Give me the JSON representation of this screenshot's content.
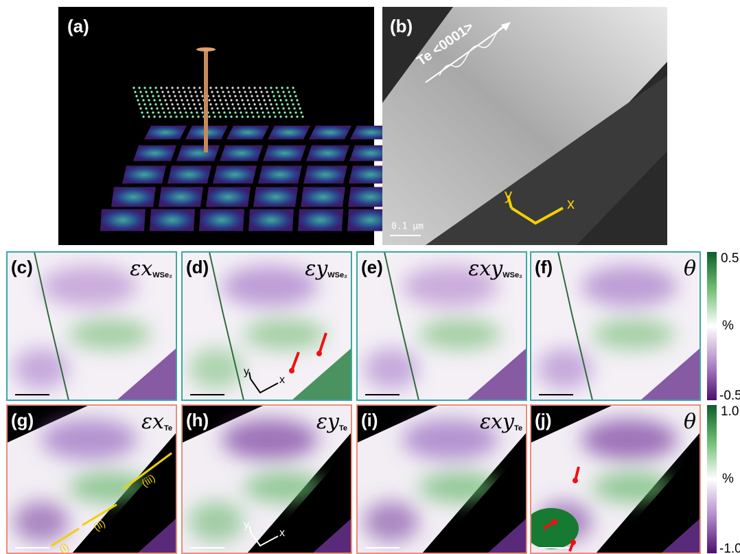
{
  "panel_a": {
    "label": "(a)"
  },
  "panel_b": {
    "label": "(b)",
    "direction": "Te <0001>",
    "axis_y": "y",
    "axis_x": "x",
    "scale_bar": "0.1 μm"
  },
  "row_wse2": {
    "panels": [
      {
        "label": "(c)",
        "symbol": "ε",
        "var": "x",
        "sub": "WSe₂"
      },
      {
        "label": "(d)",
        "symbol": "ε",
        "var": "y",
        "sub": "WSe₂"
      },
      {
        "label": "(e)",
        "symbol": "ε",
        "var": "xy",
        "sub": "WSe₂"
      },
      {
        "label": "(f)",
        "symbol": "θ"
      }
    ],
    "axis_y": "y",
    "axis_x": "x",
    "colorbar": {
      "top": "0.5",
      "unit": "%",
      "bottom": "-0.5"
    }
  },
  "row_te": {
    "panels": [
      {
        "label": "(g)",
        "symbol": "ε",
        "var": "x",
        "sub": "Te"
      },
      {
        "label": "(h)",
        "symbol": "ε",
        "var": "y",
        "sub": "Te"
      },
      {
        "label": "(i)",
        "symbol": "ε",
        "var": "xy",
        "sub": "Te"
      },
      {
        "label": "(j)",
        "symbol": "θ"
      }
    ],
    "regions": [
      "(i)",
      "(ii)",
      "(iii)"
    ],
    "axis_y": "y",
    "axis_x": "x",
    "colorbar": {
      "top": "1.0",
      "unit": "%",
      "bottom": "-1.0"
    }
  }
}
